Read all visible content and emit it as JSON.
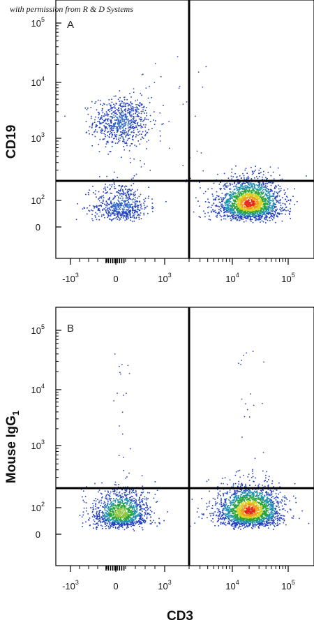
{
  "credit": "with permission from R & D Systems",
  "colors": {
    "low": "#1f3fbf",
    "mid": "#27a33a",
    "high": "#e3261a",
    "frame": "#000000",
    "gate": "#000000"
  },
  "chart_data": {
    "type": "scatter",
    "x_label": "CD3",
    "x_ticks": [
      {
        "base": "-10",
        "exp": "3"
      },
      {
        "base": "0",
        "exp": ""
      },
      {
        "base": "10",
        "exp": "3"
      },
      {
        "base": "10",
        "exp": "4"
      },
      {
        "base": "10",
        "exp": "5"
      }
    ],
    "y_ticks": [
      {
        "base": "0",
        "exp": ""
      },
      {
        "base": "10",
        "exp": "2"
      },
      {
        "base": "10",
        "exp": "3"
      },
      {
        "base": "10",
        "exp": "4"
      },
      {
        "base": "10",
        "exp": "5"
      }
    ],
    "panels": [
      {
        "letter": "A",
        "y_label": "CD19",
        "y_label_sub": "",
        "gate": {
          "x": 2000,
          "y": 200
        },
        "populations": [
          {
            "cx": 100,
            "cy": 2000,
            "sx": 0.5,
            "sy": 0.22,
            "n": 700,
            "density": "low"
          },
          {
            "cx": 100,
            "cy": 80,
            "sx": 0.5,
            "sy": 0.2,
            "n": 600,
            "density": "low"
          },
          {
            "cx": 20000,
            "cy": 90,
            "sx": 0.28,
            "sy": 0.2,
            "n": 2200,
            "density": "high"
          }
        ]
      },
      {
        "letter": "B",
        "y_label": "Mouse IgG",
        "y_label_sub": "1",
        "gate": {
          "x": 2000,
          "y": 200
        },
        "populations": [
          {
            "cx": 100,
            "cy": 80,
            "sx": 0.5,
            "sy": 0.2,
            "n": 1300,
            "density": "mid"
          },
          {
            "cx": 20000,
            "cy": 90,
            "sx": 0.28,
            "sy": 0.2,
            "n": 2200,
            "density": "high"
          }
        ]
      }
    ]
  }
}
